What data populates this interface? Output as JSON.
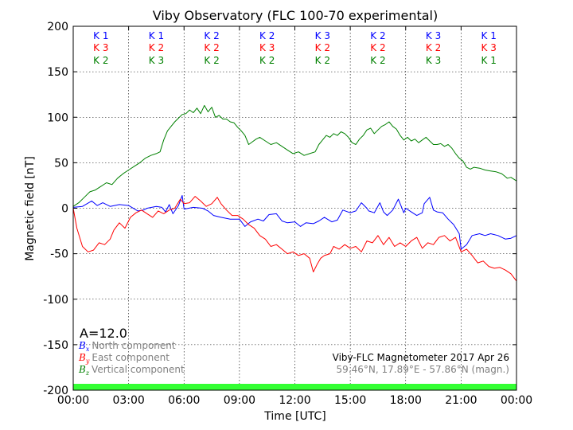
{
  "chart_data": {
    "type": "line",
    "title": "Viby Observatory (FLC 100-70 experimental)",
    "xlabel": "Time [UTC]",
    "ylabel": "Magnetic field [nT]",
    "x_ticks": [
      "00:00",
      "03:00",
      "06:00",
      "09:00",
      "12:00",
      "15:00",
      "18:00",
      "21:00",
      "00:00"
    ],
    "xlim_hours": [
      0,
      24
    ],
    "ylim": [
      -200,
      200
    ],
    "y_ticks": [
      -200,
      -150,
      -100,
      -50,
      0,
      50,
      100,
      150,
      200
    ],
    "grid": true,
    "k_index": {
      "north": [
        "K 1",
        "K 1",
        "K 2",
        "K 2",
        "K 3",
        "K 2",
        "K 3",
        "K 1"
      ],
      "east": [
        "K 3",
        "K 2",
        "K 2",
        "K 3",
        "K 2",
        "K 2",
        "K 2",
        "K 3"
      ],
      "vertical": [
        "K 2",
        "K 3",
        "K 2",
        "K 2",
        "K 2",
        "K 2",
        "K 3",
        "K 1"
      ]
    },
    "a_index_label": "A=12.0",
    "legend": {
      "placement": "lower-left",
      "entries": [
        {
          "symbol": "B",
          "sub": "x",
          "label": "North component",
          "color": "#0000ff"
        },
        {
          "symbol": "B",
          "sub": "y",
          "label": "East component",
          "color": "#ff0000"
        },
        {
          "symbol": "B",
          "sub": "z",
          "label": "Vertical component",
          "color": "#008000"
        }
      ]
    },
    "station_line1": "Viby-FLC Magnetometer 2017 Apr 26",
    "station_line2": "59.46°N, 17.89°E - 57.86°N (magn.)",
    "quality_bar_color": "#33ff33",
    "series": [
      {
        "key": "north",
        "color": "#0000ff",
        "points": [
          [
            0,
            1
          ],
          [
            0.5,
            2
          ],
          [
            1,
            8
          ],
          [
            1.3,
            3
          ],
          [
            1.6,
            6
          ],
          [
            2,
            2
          ],
          [
            2.5,
            4
          ],
          [
            3,
            3
          ],
          [
            3.5,
            -3
          ],
          [
            3.8,
            -2
          ],
          [
            4,
            0
          ],
          [
            4.5,
            2
          ],
          [
            4.8,
            1
          ],
          [
            5,
            -4
          ],
          [
            5.2,
            4
          ],
          [
            5.4,
            -6
          ],
          [
            5.7,
            3
          ],
          [
            5.9,
            14
          ],
          [
            6,
            -1
          ],
          [
            6.5,
            1
          ],
          [
            7,
            0
          ],
          [
            7.3,
            -3
          ],
          [
            7.6,
            -8
          ],
          [
            8,
            -10
          ],
          [
            8.5,
            -12
          ],
          [
            9,
            -12
          ],
          [
            9.3,
            -20
          ],
          [
            9.6,
            -15
          ],
          [
            10,
            -12
          ],
          [
            10.3,
            -14
          ],
          [
            10.6,
            -7
          ],
          [
            11,
            -6
          ],
          [
            11.3,
            -14
          ],
          [
            11.6,
            -16
          ],
          [
            12,
            -15
          ],
          [
            12.3,
            -20
          ],
          [
            12.6,
            -16
          ],
          [
            13,
            -17
          ],
          [
            13.3,
            -14
          ],
          [
            13.6,
            -10
          ],
          [
            14,
            -15
          ],
          [
            14.3,
            -13
          ],
          [
            14.6,
            -2
          ],
          [
            15,
            -5
          ],
          [
            15.3,
            -3
          ],
          [
            15.6,
            6
          ],
          [
            15.9,
            0
          ],
          [
            16,
            -3
          ],
          [
            16.3,
            -5
          ],
          [
            16.6,
            6
          ],
          [
            16.8,
            -4
          ],
          [
            17,
            -8
          ],
          [
            17.3,
            -2
          ],
          [
            17.6,
            10
          ],
          [
            17.9,
            -5
          ],
          [
            18,
            0
          ],
          [
            18.3,
            -4
          ],
          [
            18.6,
            -8
          ],
          [
            18.9,
            -5
          ],
          [
            19,
            5
          ],
          [
            19.3,
            12
          ],
          [
            19.5,
            -2
          ],
          [
            19.7,
            -4
          ],
          [
            20,
            -5
          ],
          [
            20.3,
            -12
          ],
          [
            20.6,
            -18
          ],
          [
            20.9,
            -28
          ],
          [
            21,
            -45
          ],
          [
            21.3,
            -40
          ],
          [
            21.6,
            -30
          ],
          [
            22,
            -28
          ],
          [
            22.3,
            -30
          ],
          [
            22.6,
            -28
          ],
          [
            23,
            -30
          ],
          [
            23.4,
            -34
          ],
          [
            23.7,
            -33
          ],
          [
            24,
            -30
          ]
        ]
      },
      {
        "key": "east",
        "color": "#ff0000",
        "points": [
          [
            0,
            0
          ],
          [
            0.2,
            -22
          ],
          [
            0.5,
            -42
          ],
          [
            0.8,
            -48
          ],
          [
            1.1,
            -46
          ],
          [
            1.4,
            -38
          ],
          [
            1.7,
            -40
          ],
          [
            2,
            -34
          ],
          [
            2.2,
            -24
          ],
          [
            2.5,
            -16
          ],
          [
            2.8,
            -22
          ],
          [
            3.1,
            -10
          ],
          [
            3.4,
            -5
          ],
          [
            3.7,
            -2
          ],
          [
            4,
            -6
          ],
          [
            4.3,
            -10
          ],
          [
            4.6,
            -3
          ],
          [
            4.9,
            -6
          ],
          [
            5.2,
            -2
          ],
          [
            5.5,
            0
          ],
          [
            5.8,
            10
          ],
          [
            6,
            5
          ],
          [
            6.3,
            6
          ],
          [
            6.6,
            13
          ],
          [
            6.9,
            8
          ],
          [
            7.2,
            2
          ],
          [
            7.5,
            5
          ],
          [
            7.8,
            12
          ],
          [
            8,
            5
          ],
          [
            8.3,
            -2
          ],
          [
            8.6,
            -8
          ],
          [
            8.9,
            -8
          ],
          [
            9.2,
            -12
          ],
          [
            9.5,
            -18
          ],
          [
            9.8,
            -22
          ],
          [
            10.1,
            -30
          ],
          [
            10.4,
            -34
          ],
          [
            10.7,
            -42
          ],
          [
            11,
            -40
          ],
          [
            11.3,
            -45
          ],
          [
            11.6,
            -50
          ],
          [
            11.9,
            -48
          ],
          [
            12.2,
            -52
          ],
          [
            12.5,
            -50
          ],
          [
            12.8,
            -55
          ],
          [
            13,
            -70
          ],
          [
            13.2,
            -62
          ],
          [
            13.4,
            -55
          ],
          [
            13.6,
            -52
          ],
          [
            13.9,
            -50
          ],
          [
            14.1,
            -42
          ],
          [
            14.4,
            -45
          ],
          [
            14.7,
            -40
          ],
          [
            15,
            -44
          ],
          [
            15.3,
            -42
          ],
          [
            15.6,
            -48
          ],
          [
            15.9,
            -36
          ],
          [
            16.2,
            -38
          ],
          [
            16.5,
            -30
          ],
          [
            16.8,
            -40
          ],
          [
            17.1,
            -32
          ],
          [
            17.4,
            -42
          ],
          [
            17.7,
            -38
          ],
          [
            18,
            -42
          ],
          [
            18.3,
            -36
          ],
          [
            18.6,
            -32
          ],
          [
            18.9,
            -44
          ],
          [
            19.2,
            -38
          ],
          [
            19.5,
            -40
          ],
          [
            19.8,
            -32
          ],
          [
            20.1,
            -30
          ],
          [
            20.4,
            -36
          ],
          [
            20.7,
            -32
          ],
          [
            21,
            -48
          ],
          [
            21.3,
            -45
          ],
          [
            21.6,
            -52
          ],
          [
            21.9,
            -60
          ],
          [
            22.2,
            -58
          ],
          [
            22.5,
            -64
          ],
          [
            22.8,
            -66
          ],
          [
            23.1,
            -65
          ],
          [
            23.4,
            -68
          ],
          [
            23.7,
            -72
          ],
          [
            24,
            -80
          ]
        ]
      },
      {
        "key": "vertical",
        "color": "#008000",
        "points": [
          [
            0,
            2
          ],
          [
            0.3,
            6
          ],
          [
            0.6,
            12
          ],
          [
            0.9,
            18
          ],
          [
            1.2,
            20
          ],
          [
            1.5,
            24
          ],
          [
            1.8,
            28
          ],
          [
            2.1,
            26
          ],
          [
            2.4,
            33
          ],
          [
            2.7,
            38
          ],
          [
            3,
            42
          ],
          [
            3.3,
            46
          ],
          [
            3.6,
            50
          ],
          [
            3.9,
            55
          ],
          [
            4.2,
            58
          ],
          [
            4.5,
            60
          ],
          [
            4.7,
            62
          ],
          [
            4.9,
            75
          ],
          [
            5.1,
            85
          ],
          [
            5.3,
            90
          ],
          [
            5.5,
            95
          ],
          [
            5.7,
            99
          ],
          [
            5.9,
            103
          ],
          [
            6.1,
            104
          ],
          [
            6.3,
            108
          ],
          [
            6.5,
            105
          ],
          [
            6.7,
            110
          ],
          [
            6.9,
            104
          ],
          [
            7.1,
            113
          ],
          [
            7.3,
            106
          ],
          [
            7.5,
            111
          ],
          [
            7.7,
            100
          ],
          [
            7.9,
            102
          ],
          [
            8.1,
            98
          ],
          [
            8.3,
            98
          ],
          [
            8.5,
            95
          ],
          [
            8.7,
            94
          ],
          [
            8.9,
            89
          ],
          [
            9.1,
            85
          ],
          [
            9.3,
            80
          ],
          [
            9.5,
            70
          ],
          [
            9.7,
            73
          ],
          [
            9.9,
            76
          ],
          [
            10.1,
            78
          ],
          [
            10.4,
            74
          ],
          [
            10.7,
            70
          ],
          [
            11,
            72
          ],
          [
            11.3,
            68
          ],
          [
            11.6,
            64
          ],
          [
            11.9,
            60
          ],
          [
            12.2,
            62
          ],
          [
            12.5,
            58
          ],
          [
            12.8,
            60
          ],
          [
            13.1,
            62
          ],
          [
            13.3,
            70
          ],
          [
            13.5,
            75
          ],
          [
            13.7,
            80
          ],
          [
            13.9,
            78
          ],
          [
            14.1,
            82
          ],
          [
            14.3,
            80
          ],
          [
            14.5,
            84
          ],
          [
            14.7,
            82
          ],
          [
            14.9,
            78
          ],
          [
            15.1,
            72
          ],
          [
            15.3,
            70
          ],
          [
            15.5,
            76
          ],
          [
            15.7,
            80
          ],
          [
            15.9,
            86
          ],
          [
            16.1,
            88
          ],
          [
            16.3,
            82
          ],
          [
            16.5,
            86
          ],
          [
            16.7,
            90
          ],
          [
            16.9,
            92
          ],
          [
            17.1,
            95
          ],
          [
            17.3,
            90
          ],
          [
            17.5,
            87
          ],
          [
            17.7,
            80
          ],
          [
            17.9,
            75
          ],
          [
            18.1,
            78
          ],
          [
            18.3,
            74
          ],
          [
            18.5,
            76
          ],
          [
            18.7,
            72
          ],
          [
            18.9,
            75
          ],
          [
            19.1,
            78
          ],
          [
            19.3,
            74
          ],
          [
            19.5,
            70
          ],
          [
            19.7,
            70
          ],
          [
            19.9,
            71
          ],
          [
            20.1,
            68
          ],
          [
            20.3,
            70
          ],
          [
            20.5,
            66
          ],
          [
            20.7,
            60
          ],
          [
            20.9,
            55
          ],
          [
            21.1,
            52
          ],
          [
            21.3,
            45
          ],
          [
            21.5,
            43
          ],
          [
            21.7,
            45
          ],
          [
            22,
            44
          ],
          [
            22.3,
            42
          ],
          [
            22.6,
            41
          ],
          [
            22.9,
            40
          ],
          [
            23.2,
            38
          ],
          [
            23.5,
            33
          ],
          [
            23.7,
            34
          ],
          [
            24,
            30
          ]
        ]
      }
    ]
  }
}
